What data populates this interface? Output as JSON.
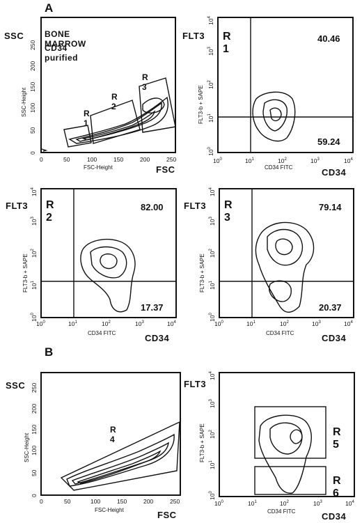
{
  "section_labels": {
    "a": "A",
    "b": "B"
  },
  "panels": {
    "p1": {
      "ylabel_big": "SSC",
      "xlabel_big": "FSC",
      "ytitle": "SSC-Height",
      "xtitle": "FSC-Height",
      "header_line1": "BONE   MARROW",
      "header_line2": "CD34   purified",
      "xticks": [
        "0",
        "50",
        "100",
        "150",
        "200",
        "250"
      ],
      "yticks": [
        "0",
        "50",
        "100",
        "150",
        "200",
        "250"
      ],
      "regions": [
        "R 1",
        "R 2",
        "R 3"
      ]
    },
    "p2": {
      "ylabel_big": "FLT3",
      "xlabel_big": "CD34",
      "ytitle": "FLT3-b + SAPE",
      "xtitle": "CD34 FITC",
      "gate": "R 1",
      "upper": "40.46",
      "lower": "59.24"
    },
    "p3": {
      "ylabel_big": "FLT3",
      "xlabel_big": "CD34",
      "ytitle": "FLT3-b + SAPE",
      "xtitle": "CD34 FITC",
      "gate": "R 2",
      "upper": "82.00",
      "lower": "17.37"
    },
    "p4": {
      "ylabel_big": "FLT3",
      "xlabel_big": "CD34",
      "ytitle": "FLT3-b + SAPE",
      "xtitle": "CD34 FITC",
      "gate": "R 3",
      "upper": "79.14",
      "lower": "20.37"
    },
    "p5": {
      "ylabel_big": "SSC",
      "xlabel_big": "FSC",
      "ytitle": "SSC-Height",
      "xtitle": "FSC-Height",
      "xticks": [
        "0",
        "50",
        "100",
        "150",
        "200",
        "250"
      ],
      "yticks": [
        "0",
        "50",
        "100",
        "150",
        "200",
        "250"
      ],
      "region": "R 4"
    },
    "p6": {
      "ylabel_big": "FLT3",
      "xlabel_big": "CD34",
      "ytitle": "FLT3-b + SAPE",
      "xtitle": "CD34 FITC",
      "regions": [
        "R 5",
        "R 6"
      ]
    }
  },
  "log_ticks": {
    "base": "10",
    "exps": [
      "0",
      "1",
      "2",
      "3",
      "4"
    ]
  }
}
